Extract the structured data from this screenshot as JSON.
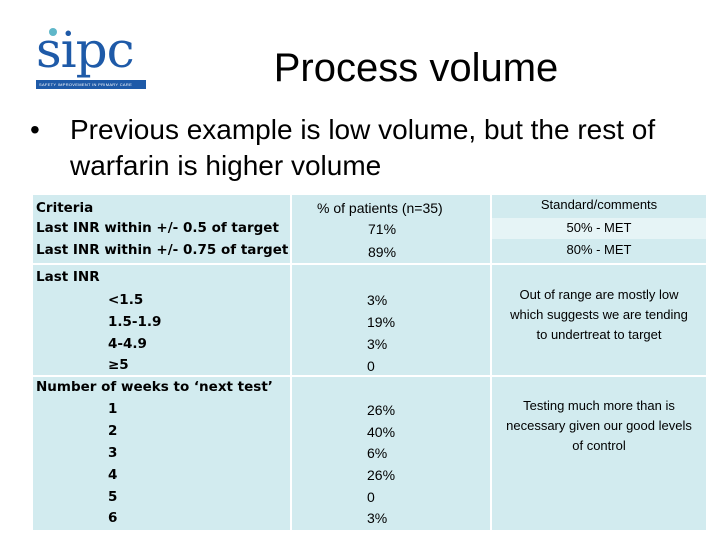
{
  "logo": {
    "text": "sipc",
    "tagline": "SAFETY IMPROVEMENT IN PRIMARY CARE",
    "colors": {
      "primary": "#1e5aa8",
      "accent": "#5fb7c9"
    }
  },
  "slide": {
    "title": "Process volume",
    "bullet": "Previous example is low volume, but the rest of warfarin is higher volume"
  },
  "table": {
    "headers": [
      "Criteria",
      "% of patients (n=35)",
      "Standard/comments"
    ],
    "row1": {
      "criteria": [
        "Last INR within +/- 0.5 of target",
        "Last INR within +/- 0.75 of target"
      ],
      "values": [
        "71%",
        "89%"
      ],
      "comments": [
        "50% - MET",
        "80% - MET"
      ]
    },
    "row2": {
      "heading": "Last INR",
      "items": [
        "<1.5",
        "1.5-1.9",
        "4-4.9",
        "≥5"
      ],
      "values": [
        "3%",
        "19%",
        "3%",
        "0"
      ],
      "comment": "Out of range are mostly low which suggests we are tending to undertreat to target"
    },
    "row3": {
      "heading": "Number of weeks to ‘next test’",
      "items": [
        "1",
        "2",
        "3",
        "4",
        "5",
        "6"
      ],
      "values": [
        "26%",
        "40%",
        "6%",
        "26%",
        "0",
        "3%"
      ],
      "comment": "Testing much more than is necessary given our good levels of control"
    },
    "colors": {
      "cell": "#d2ebef",
      "cell_light": "#e6f4f6"
    }
  }
}
